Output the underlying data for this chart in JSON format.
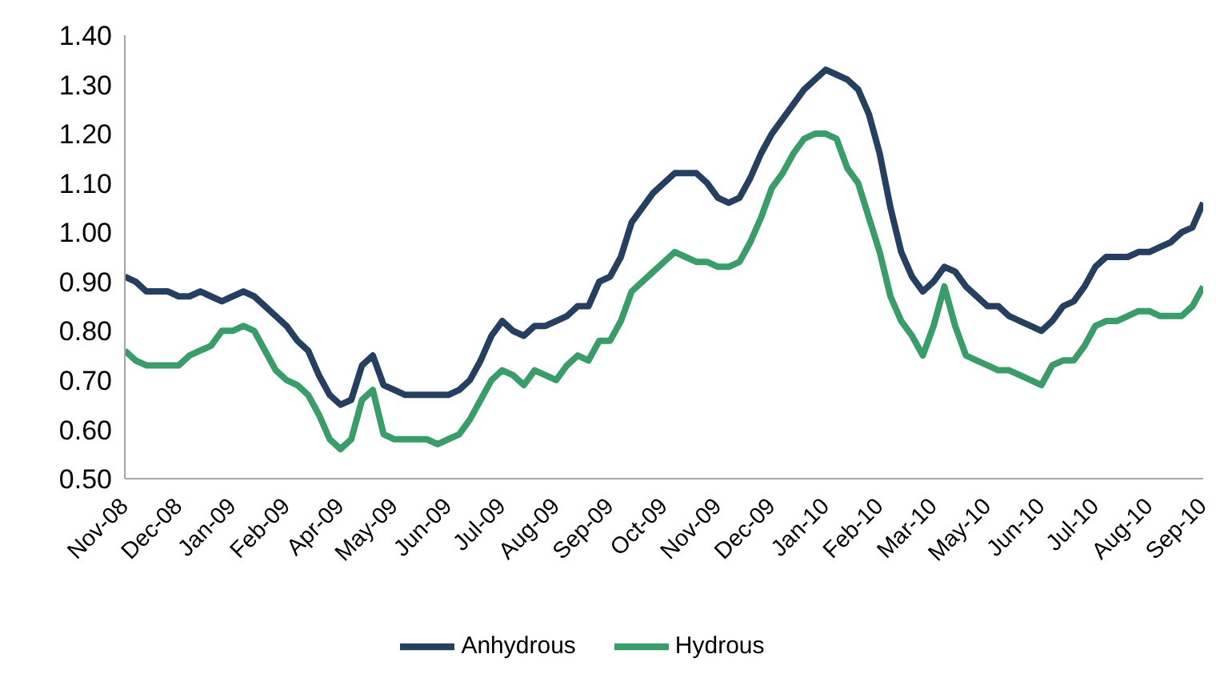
{
  "chart_data": {
    "type": "line",
    "categories": [
      "Nov-08",
      null,
      null,
      null,
      null,
      "Dec-08",
      null,
      null,
      null,
      null,
      "Jan-09",
      null,
      null,
      null,
      null,
      "Feb-09",
      null,
      null,
      null,
      null,
      "Apr-09",
      null,
      null,
      null,
      null,
      "May-09",
      null,
      null,
      null,
      null,
      "Jun-09",
      null,
      null,
      null,
      null,
      "Jul-09",
      null,
      null,
      null,
      null,
      "Aug-09",
      null,
      null,
      null,
      null,
      "Sep-09",
      null,
      null,
      null,
      null,
      "Oct-09",
      null,
      null,
      null,
      null,
      "Nov-09",
      null,
      null,
      null,
      null,
      "Dec-09",
      null,
      null,
      null,
      null,
      "Jan-10",
      null,
      null,
      null,
      null,
      "Feb-10",
      null,
      null,
      null,
      null,
      "Mar-10",
      null,
      null,
      null,
      null,
      "May-10",
      null,
      null,
      null,
      null,
      "Jun-10",
      null,
      null,
      null,
      null,
      "Jul-10",
      null,
      null,
      null,
      null,
      "Aug-10",
      null,
      null,
      null,
      null,
      "Sep-10"
    ],
    "series": [
      {
        "name": "Anhydrous",
        "color": "#243f60",
        "values": [
          0.91,
          0.9,
          0.88,
          0.88,
          0.88,
          0.87,
          0.87,
          0.88,
          0.87,
          0.86,
          0.87,
          0.88,
          0.87,
          0.85,
          0.83,
          0.81,
          0.78,
          0.76,
          0.71,
          0.67,
          0.65,
          0.66,
          0.73,
          0.75,
          0.69,
          0.68,
          0.67,
          0.67,
          0.67,
          0.67,
          0.67,
          0.68,
          0.7,
          0.74,
          0.79,
          0.82,
          0.8,
          0.79,
          0.81,
          0.81,
          0.82,
          0.83,
          0.85,
          0.85,
          0.9,
          0.91,
          0.95,
          1.02,
          1.05,
          1.08,
          1.1,
          1.12,
          1.12,
          1.12,
          1.1,
          1.07,
          1.06,
          1.07,
          1.11,
          1.16,
          1.2,
          1.23,
          1.26,
          1.29,
          1.31,
          1.33,
          1.32,
          1.31,
          1.29,
          1.24,
          1.16,
          1.05,
          0.96,
          0.91,
          0.88,
          0.9,
          0.93,
          0.92,
          0.89,
          0.87,
          0.85,
          0.85,
          0.83,
          0.82,
          0.81,
          0.8,
          0.82,
          0.85,
          0.86,
          0.89,
          0.93,
          0.95,
          0.95,
          0.95,
          0.96,
          0.96,
          0.97,
          0.98,
          1.0,
          1.01,
          1.06
        ]
      },
      {
        "name": "Hydrous",
        "color": "#3a9c69",
        "values": [
          0.76,
          0.74,
          0.73,
          0.73,
          0.73,
          0.73,
          0.75,
          0.76,
          0.77,
          0.8,
          0.8,
          0.81,
          0.8,
          0.76,
          0.72,
          0.7,
          0.69,
          0.67,
          0.63,
          0.58,
          0.56,
          0.58,
          0.66,
          0.68,
          0.59,
          0.58,
          0.58,
          0.58,
          0.58,
          0.57,
          0.58,
          0.59,
          0.62,
          0.66,
          0.7,
          0.72,
          0.71,
          0.69,
          0.72,
          0.71,
          0.7,
          0.73,
          0.75,
          0.74,
          0.78,
          0.78,
          0.82,
          0.88,
          0.9,
          0.92,
          0.94,
          0.96,
          0.95,
          0.94,
          0.94,
          0.93,
          0.93,
          0.94,
          0.98,
          1.03,
          1.09,
          1.12,
          1.16,
          1.19,
          1.2,
          1.2,
          1.19,
          1.13,
          1.1,
          1.03,
          0.96,
          0.87,
          0.82,
          0.79,
          0.75,
          0.81,
          0.89,
          0.81,
          0.75,
          0.74,
          0.73,
          0.72,
          0.72,
          0.71,
          0.7,
          0.69,
          0.73,
          0.74,
          0.74,
          0.77,
          0.81,
          0.82,
          0.82,
          0.83,
          0.84,
          0.84,
          0.83,
          0.83,
          0.83,
          0.85,
          0.89
        ]
      }
    ],
    "ylim": [
      0.5,
      1.4
    ],
    "yticks": [
      {
        "value": 0.5,
        "label": "0.50"
      },
      {
        "value": 0.6,
        "label": "0.60"
      },
      {
        "value": 0.7,
        "label": "0.70"
      },
      {
        "value": 0.8,
        "label": "0.80"
      },
      {
        "value": 0.9,
        "label": "0.90"
      },
      {
        "value": 1.0,
        "label": "1.00"
      },
      {
        "value": 1.1,
        "label": "1.10"
      },
      {
        "value": 1.2,
        "label": "1.20"
      },
      {
        "value": 1.3,
        "label": "1.30"
      },
      {
        "value": 1.4,
        "label": "1.40"
      }
    ],
    "grid": false,
    "legend": "bottom",
    "marker": "none",
    "line_style": "solid"
  }
}
